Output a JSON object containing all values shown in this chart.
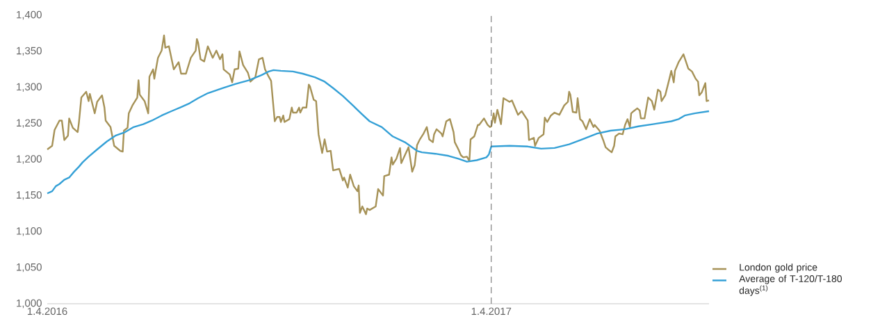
{
  "chart_data": {
    "type": "line",
    "xlim": [
      "2016-04-01",
      "2017-09-27"
    ],
    "ylim": [
      1000,
      1400
    ],
    "xticks": [
      {
        "value": "2016-04-01",
        "label": "1.4.2016"
      },
      {
        "value": "2017-04-01",
        "label": "1.4.2017"
      }
    ],
    "yticks": [
      {
        "value": 1000,
        "label": "1,000"
      },
      {
        "value": 1050,
        "label": "1,050"
      },
      {
        "value": 1100,
        "label": "1,100"
      },
      {
        "value": 1150,
        "label": "1,150"
      },
      {
        "value": 1200,
        "label": "1,200"
      },
      {
        "value": 1250,
        "label": "1,250"
      },
      {
        "value": 1300,
        "label": "1,300"
      },
      {
        "value": 1350,
        "label": "1,350"
      },
      {
        "value": 1400,
        "label": "1,400"
      }
    ],
    "legend": "bottom right",
    "ref_lines": [
      {
        "axis": "x",
        "value": "2017-04-01",
        "label": null,
        "color": "#555555",
        "line_style": "dashed"
      }
    ],
    "series": [
      {
        "name": "London gold price",
        "color": "#a69257",
        "x": [
          "2016-04-01",
          "2016-04-05",
          "2016-04-07",
          "2016-04-11",
          "2016-04-13",
          "2016-04-15",
          "2016-04-18",
          "2016-04-19",
          "2016-04-22",
          "2016-04-26",
          "2016-04-27",
          "2016-04-29",
          "2016-05-03",
          "2016-05-05",
          "2016-05-06",
          "2016-05-10",
          "2016-05-12",
          "2016-05-16",
          "2016-05-18",
          "2016-05-19",
          "2016-05-23",
          "2016-05-26",
          "2016-05-31",
          "2016-06-02",
          "2016-06-03",
          "2016-06-06",
          "2016-06-07",
          "2016-06-10",
          "2016-06-14",
          "2016-06-15",
          "2016-06-16",
          "2016-06-20",
          "2016-06-23",
          "2016-06-24",
          "2016-06-27",
          "2016-06-28",
          "2016-06-29",
          "2016-07-01",
          "2016-07-04",
          "2016-07-06",
          "2016-07-07",
          "2016-07-10",
          "2016-07-12",
          "2016-07-14",
          "2016-07-18",
          "2016-07-20",
          "2016-07-24",
          "2016-07-28",
          "2016-08-01",
          "2016-08-02",
          "2016-08-03",
          "2016-08-05",
          "2016-08-08",
          "2016-08-11",
          "2016-08-15",
          "2016-08-18",
          "2016-08-21",
          "2016-08-23",
          "2016-08-24",
          "2016-08-29",
          "2016-08-31",
          "2016-09-02",
          "2016-09-05",
          "2016-09-06",
          "2016-09-09",
          "2016-09-13",
          "2016-09-15",
          "2016-09-19",
          "2016-09-22",
          "2016-09-25",
          "2016-09-27",
          "2016-09-30",
          "2016-10-02",
          "2016-10-05",
          "2016-10-07",
          "2016-10-09",
          "2016-10-10",
          "2016-10-12",
          "2016-10-13",
          "2016-10-17",
          "2016-10-19",
          "2016-10-20",
          "2016-10-23",
          "2016-10-25",
          "2016-10-26",
          "2016-10-28",
          "2016-10-31",
          "2016-11-02",
          "2016-11-03",
          "2016-11-06",
          "2016-11-08",
          "2016-11-10",
          "2016-11-13",
          "2016-11-15",
          "2016-11-17",
          "2016-11-20",
          "2016-11-22",
          "2016-11-27",
          "2016-11-30",
          "2016-12-01",
          "2016-12-04",
          "2016-12-06",
          "2016-12-09",
          "2016-12-12",
          "2016-12-13",
          "2016-12-14",
          "2016-12-16",
          "2016-12-19",
          "2016-12-20",
          "2016-12-22",
          "2016-12-27",
          "2016-12-29",
          "2017-01-02",
          "2017-01-03",
          "2017-01-07",
          "2017-01-09",
          "2017-01-10",
          "2017-01-13",
          "2017-01-16",
          "2017-01-17",
          "2017-01-23",
          "2017-01-26",
          "2017-01-28",
          "2017-01-30",
          "2017-02-01",
          "2017-02-04",
          "2017-02-07",
          "2017-02-09",
          "2017-02-12",
          "2017-02-13",
          "2017-02-15",
          "2017-02-19",
          "2017-02-20",
          "2017-02-23",
          "2017-02-26",
          "2017-03-01",
          "2017-03-02",
          "2017-03-05",
          "2017-03-07",
          "2017-03-09",
          "2017-03-12",
          "2017-03-14",
          "2017-03-15",
          "2017-03-18",
          "2017-03-21",
          "2017-03-22",
          "2017-03-26",
          "2017-03-29",
          "2017-03-31",
          "2017-04-01",
          "2017-04-03",
          "2017-04-04",
          "2017-04-06",
          "2017-04-09",
          "2017-04-11",
          "2017-04-16",
          "2017-04-18",
          "2017-04-23",
          "2017-04-26",
          "2017-05-01",
          "2017-05-02",
          "2017-05-06",
          "2017-05-07",
          "2017-05-10",
          "2017-05-14",
          "2017-05-15",
          "2017-05-17",
          "2017-05-20",
          "2017-05-23",
          "2017-05-27",
          "2017-05-31",
          "2017-06-03",
          "2017-06-04",
          "2017-06-05",
          "2017-06-07",
          "2017-06-10",
          "2017-06-11",
          "2017-06-13",
          "2017-06-15",
          "2017-06-18",
          "2017-06-21",
          "2017-06-24",
          "2017-06-25",
          "2017-06-29",
          "2017-07-02",
          "2017-07-04",
          "2017-07-06",
          "2017-07-09",
          "2017-07-11",
          "2017-07-12",
          "2017-07-15",
          "2017-07-18",
          "2017-07-20",
          "2017-07-22",
          "2017-07-24",
          "2017-07-25",
          "2017-07-27",
          "2017-07-30",
          "2017-08-01",
          "2017-08-02",
          "2017-08-05",
          "2017-08-08",
          "2017-08-11",
          "2017-08-13",
          "2017-08-16",
          "2017-08-18",
          "2017-08-19",
          "2017-08-22",
          "2017-08-25",
          "2017-08-27",
          "2017-08-29",
          "2017-08-30",
          "2017-09-02",
          "2017-09-06",
          "2017-09-10",
          "2017-09-13",
          "2017-09-16",
          "2017-09-18",
          "2017-09-19",
          "2017-09-21",
          "2017-09-24",
          "2017-09-25",
          "2017-09-27"
        ],
        "values": [
          1214,
          1219,
          1241,
          1254,
          1254,
          1227,
          1233,
          1257,
          1244,
          1238,
          1251,
          1286,
          1294,
          1281,
          1291,
          1264,
          1280,
          1289,
          1272,
          1254,
          1245,
          1219,
          1212,
          1211,
          1240,
          1244,
          1264,
          1275,
          1286,
          1310,
          1290,
          1281,
          1264,
          1315,
          1325,
          1312,
          1322,
          1341,
          1351,
          1372,
          1355,
          1357,
          1341,
          1325,
          1335,
          1319,
          1319,
          1341,
          1351,
          1367,
          1362,
          1339,
          1336,
          1357,
          1341,
          1351,
          1339,
          1346,
          1325,
          1318,
          1307,
          1325,
          1326,
          1350,
          1331,
          1320,
          1308,
          1314,
          1339,
          1341,
          1325,
          1315,
          1309,
          1253,
          1259,
          1259,
          1252,
          1261,
          1252,
          1256,
          1272,
          1265,
          1265,
          1272,
          1265,
          1272,
          1272,
          1304,
          1301,
          1283,
          1281,
          1235,
          1209,
          1228,
          1211,
          1212,
          1185,
          1187,
          1171,
          1175,
          1161,
          1179,
          1163,
          1156,
          1164,
          1126,
          1135,
          1124,
          1132,
          1130,
          1135,
          1159,
          1150,
          1177,
          1179,
          1203,
          1193,
          1201,
          1216,
          1195,
          1217,
          1183,
          1192,
          1220,
          1227,
          1235,
          1245,
          1228,
          1224,
          1235,
          1242,
          1236,
          1232,
          1253,
          1256,
          1238,
          1224,
          1214,
          1206,
          1203,
          1204,
          1198,
          1228,
          1232,
          1248,
          1248,
          1257,
          1248,
          1245,
          1246,
          1264,
          1251,
          1269,
          1249,
          1285,
          1280,
          1282,
          1262,
          1267,
          1254,
          1227,
          1230,
          1219,
          1230,
          1235,
          1258,
          1252,
          1261,
          1265,
          1262,
          1275,
          1280,
          1294,
          1290,
          1266,
          1265,
          1285,
          1256,
          1253,
          1242,
          1256,
          1245,
          1248,
          1240,
          1227,
          1217,
          1214,
          1210,
          1219,
          1232,
          1236,
          1235,
          1248,
          1256,
          1245,
          1264,
          1267,
          1271,
          1268,
          1257,
          1257,
          1286,
          1281,
          1269,
          1297,
          1294,
          1281,
          1289,
          1309,
          1323,
          1307,
          1323,
          1335,
          1346,
          1326,
          1322,
          1312,
          1308,
          1289,
          1293,
          1306,
          1281,
          1282
        ]
      },
      {
        "name": "Average of T-120/T-180 days$^{(1)}$",
        "color": "#34a0d6",
        "x": [
          "2016-04-01",
          "2016-04-05",
          "2016-04-08",
          "2016-04-11",
          "2016-04-15",
          "2016-04-19",
          "2016-04-23",
          "2016-04-27",
          "2016-04-30",
          "2016-05-05",
          "2016-05-12",
          "2016-05-20",
          "2016-05-27",
          "2016-06-04",
          "2016-06-11",
          "2016-06-19",
          "2016-06-26",
          "2016-07-04",
          "2016-07-12",
          "2016-07-19",
          "2016-07-27",
          "2016-08-03",
          "2016-08-11",
          "2016-08-23",
          "2016-09-03",
          "2016-09-14",
          "2016-09-24",
          "2016-09-30",
          "2016-10-04",
          "2016-10-10",
          "2016-10-20",
          "2016-10-28",
          "2016-11-07",
          "2016-11-15",
          "2016-11-22",
          "2016-11-30",
          "2016-12-07",
          "2016-12-15",
          "2016-12-22",
          "2017-01-01",
          "2017-01-10",
          "2017-01-20",
          "2017-01-30",
          "2017-02-03",
          "2017-02-14",
          "2017-02-25",
          "2017-03-05",
          "2017-03-12",
          "2017-03-20",
          "2017-03-28",
          "2017-03-30",
          "2017-04-01",
          "2017-04-16",
          "2017-05-01",
          "2017-05-12",
          "2017-05-23",
          "2017-06-04",
          "2017-06-15",
          "2017-06-27",
          "2017-07-08",
          "2017-07-20",
          "2017-07-31",
          "2017-08-12",
          "2017-08-27",
          "2017-09-02",
          "2017-09-07",
          "2017-09-15",
          "2017-09-27"
        ],
        "values": [
          1153,
          1156,
          1163,
          1166,
          1172,
          1175,
          1183,
          1190,
          1196,
          1204,
          1214,
          1225,
          1233,
          1238,
          1245,
          1249,
          1254,
          1261,
          1267,
          1272,
          1278,
          1285,
          1292,
          1299,
          1305,
          1310,
          1317,
          1322,
          1324,
          1323,
          1322,
          1319,
          1314,
          1308,
          1299,
          1288,
          1277,
          1264,
          1253,
          1245,
          1232,
          1224,
          1212,
          1210,
          1208,
          1205,
          1201,
          1197,
          1199,
          1203,
          1207,
          1218,
          1219,
          1218,
          1215,
          1216,
          1221,
          1228,
          1236,
          1240,
          1242,
          1246,
          1249,
          1253,
          1256,
          1261,
          1264,
          1267
        ]
      }
    ]
  }
}
